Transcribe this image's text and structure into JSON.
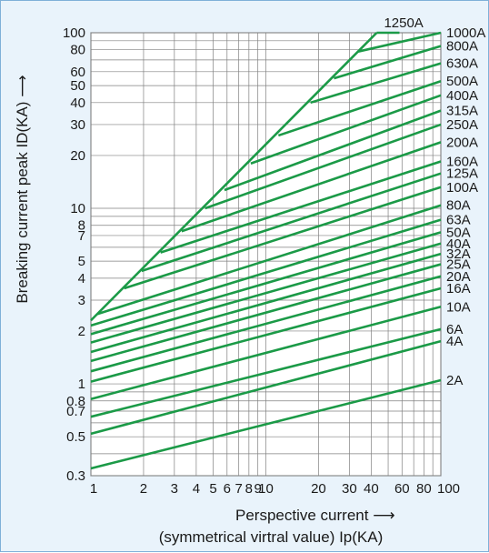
{
  "chart_data": {
    "type": "line",
    "x_scale": "log",
    "y_scale": "log",
    "xlim": [
      1,
      100
    ],
    "ylim": [
      0.3,
      100
    ],
    "grid": true,
    "xlabel": "Perspective current",
    "xlabel_sub": "(symmetrical virtral value) Ip(KA)",
    "ylabel": "Breaking current peak ID(KA)",
    "x_ticks": [
      1,
      2,
      3,
      4,
      5,
      6,
      7,
      8,
      9,
      10,
      20,
      30,
      40,
      60,
      80,
      100
    ],
    "x_tick_labels": [
      "1",
      "2",
      "3",
      "4",
      "5",
      "6",
      "7",
      "8",
      "9",
      "10",
      "20",
      "30",
      "40",
      "60",
      "80",
      "100"
    ],
    "y_ticks": [
      0.3,
      0.5,
      0.7,
      0.8,
      1,
      2,
      3,
      4,
      5,
      7,
      8,
      10,
      20,
      30,
      40,
      50,
      60,
      80,
      100
    ],
    "y_tick_labels": [
      "0.3",
      "0.5",
      "0.7",
      "0.8",
      "1",
      "2",
      "3",
      "4",
      "5",
      "7",
      "8",
      "10",
      "20",
      "30",
      "40",
      "50",
      "60",
      "80",
      "100"
    ],
    "envelope": {
      "x": [
        1,
        43
      ],
      "y": [
        2.3,
        100
      ]
    },
    "series": [
      {
        "name": "2A",
        "values": [
          [
            1,
            0.33
          ],
          [
            100,
            1.05
          ]
        ]
      },
      {
        "name": "4A",
        "values": [
          [
            1,
            0.52
          ],
          [
            100,
            1.75
          ]
        ]
      },
      {
        "name": "6A",
        "values": [
          [
            1,
            0.65
          ],
          [
            100,
            2.05
          ]
        ]
      },
      {
        "name": "10A",
        "values": [
          [
            1,
            0.82
          ],
          [
            100,
            2.75
          ]
        ]
      },
      {
        "name": "16A",
        "values": [
          [
            1,
            1.03
          ],
          [
            100,
            3.5
          ]
        ]
      },
      {
        "name": "20A",
        "values": [
          [
            1,
            1.18
          ],
          [
            100,
            4.1
          ]
        ]
      },
      {
        "name": "25A",
        "values": [
          [
            1,
            1.35
          ],
          [
            100,
            4.8
          ]
        ]
      },
      {
        "name": "32A",
        "values": [
          [
            1,
            1.52
          ],
          [
            100,
            5.5
          ]
        ]
      },
      {
        "name": "40A",
        "values": [
          [
            1,
            1.72
          ],
          [
            100,
            6.3
          ]
        ]
      },
      {
        "name": "50A",
        "values": [
          [
            1,
            1.92
          ],
          [
            100,
            7.3
          ]
        ]
      },
      {
        "name": "63A",
        "values": [
          [
            1,
            2.15
          ],
          [
            100,
            8.6
          ]
        ]
      },
      {
        "name": "80A",
        "values": [
          [
            1.09,
            2.5
          ],
          [
            100,
            10.4
          ]
        ]
      },
      {
        "name": "100A",
        "values": [
          [
            1.55,
            3.5
          ],
          [
            100,
            13.2
          ]
        ]
      },
      {
        "name": "125A",
        "values": [
          [
            1.95,
            4.4
          ],
          [
            100,
            15.8
          ]
        ]
      },
      {
        "name": "160A",
        "values": [
          [
            2.5,
            5.6
          ],
          [
            100,
            18.5
          ]
        ]
      },
      {
        "name": "200A",
        "values": [
          [
            3.3,
            7.4
          ],
          [
            100,
            23.8
          ]
        ]
      },
      {
        "name": "250A",
        "values": [
          [
            4.5,
            10
          ],
          [
            100,
            30
          ]
        ]
      },
      {
        "name": "315A",
        "values": [
          [
            5.8,
            12.7
          ],
          [
            100,
            36
          ]
        ]
      },
      {
        "name": "400A",
        "values": [
          [
            8.2,
            18
          ],
          [
            100,
            44
          ]
        ]
      },
      {
        "name": "500A",
        "values": [
          [
            11.8,
            26
          ],
          [
            100,
            53
          ]
        ]
      },
      {
        "name": "630A",
        "values": [
          [
            18,
            40
          ],
          [
            100,
            67
          ]
        ]
      },
      {
        "name": "800A",
        "values": [
          [
            24.5,
            55
          ],
          [
            100,
            84
          ]
        ]
      },
      {
        "name": "1000A",
        "values": [
          [
            33.5,
            78
          ],
          [
            100,
            100
          ]
        ]
      },
      {
        "name": "1250A",
        "values": [
          [
            43,
            100
          ],
          [
            58,
            100
          ]
        ]
      }
    ],
    "line_color": "#1b9a47",
    "grid_color": "#808080",
    "background": "#ffffff",
    "panel_background": "#e9f3fb",
    "panel_border": "#7fb0d8"
  }
}
